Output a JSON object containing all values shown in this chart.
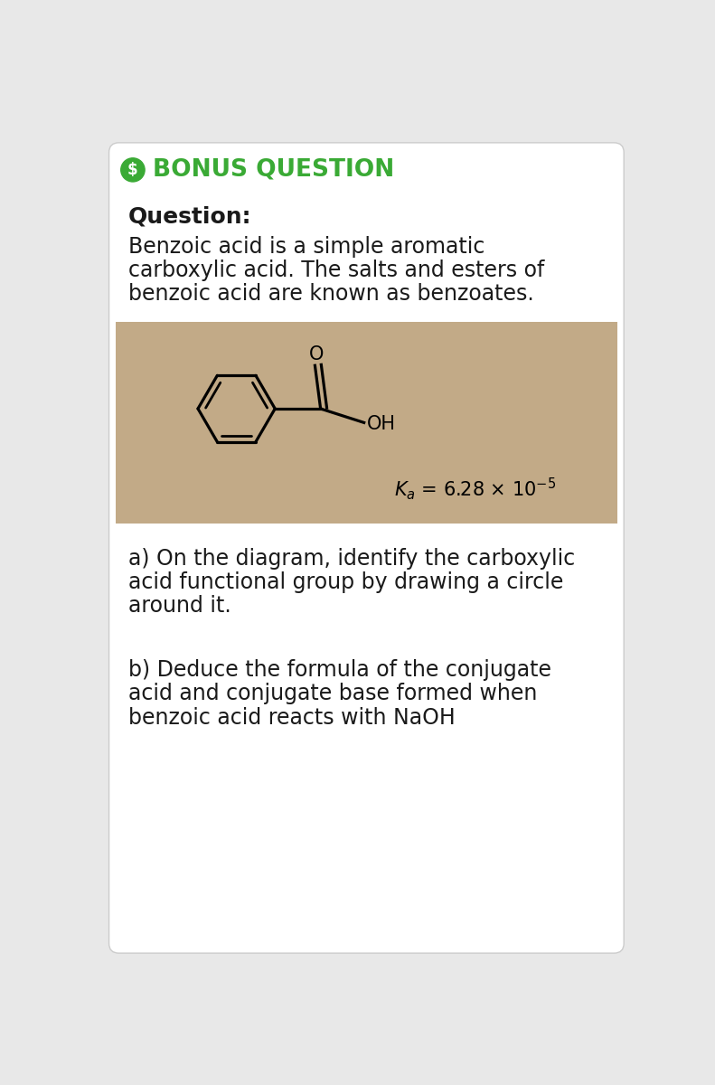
{
  "background_color": "#e8e8e8",
  "card_color": "#ffffff",
  "title_text": "BONUS QUESTION",
  "title_color": "#3aaa35",
  "dollar_icon_color": "#3aaa35",
  "question_label": "Question:",
  "intro_line1": "Benzoic acid is a simple aromatic",
  "intro_line2": "carboxylic acid. The salts and esters of",
  "intro_line3": "benzoic acid are known as benzoates.",
  "image_bg": "#c2aa87",
  "body_text_color": "#1a1a1a",
  "font_size_title": 19,
  "font_size_body": 17,
  "font_size_question_label": 18,
  "part_a_line1": "a) On the diagram, identify the carboxylic",
  "part_a_line2": "acid functional group by drawing a circle",
  "part_a_line3": "around it.",
  "part_b_line1": "b) Deduce the formula of the conjugate",
  "part_b_line2": "acid and conjugate base formed when",
  "part_b_line3": "benzoic acid reacts with NaOH"
}
